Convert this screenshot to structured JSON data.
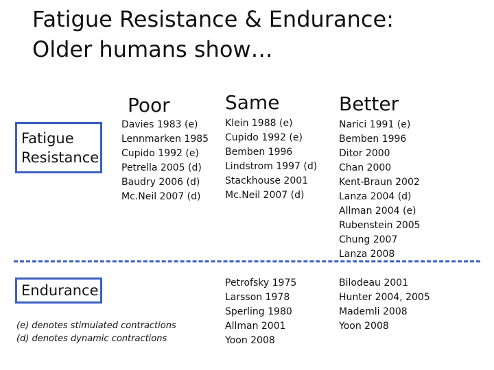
{
  "title": {
    "line1": "Fatigue Resistance & Endurance:",
    "line2": "Older humans show…"
  },
  "columns": {
    "poor": "Poor",
    "same": "Same",
    "better": "Better"
  },
  "rows": {
    "fatigue": {
      "label_line1": "Fatigue",
      "label_line2": "Resistance",
      "poor": [
        "Davies 1983 (e)",
        "Lennmarken 1985",
        "Cupido 1992 (e)",
        "Petrella 2005 (d)",
        "Baudry 2006 (d)",
        "Mc.Neil 2007 (d)"
      ],
      "same": [
        "Klein 1988 (e)",
        "Cupido 1992 (e)",
        "Bemben 1996",
        "Lindstrom 1997 (d)",
        "Stackhouse 2001",
        "Mc.Neil 2007 (d)"
      ],
      "better": [
        "Narici 1991 (e)",
        "Bemben 1996",
        "Ditor 2000",
        "Chan 2000",
        "Kent-Braun 2002",
        "Lanza 2004 (d)",
        "Allman 2004 (e)",
        "Rubenstein 2005",
        "Chung 2007",
        "Lanza 2008"
      ]
    },
    "endurance": {
      "label": "Endurance",
      "same": [
        "Petrofsky 1975",
        "Larsson 1978",
        "Sperling 1980",
        "Allman 2001",
        "Yoon 2008"
      ],
      "better": [
        "Bilodeau 2001",
        "Hunter 2004, 2005",
        "Mademli 2008",
        "Yoon 2008"
      ]
    }
  },
  "legend": {
    "line1": "(e) denotes stimulated contractions",
    "line2": "(d) denotes dynamic contractions"
  },
  "colors": {
    "accent": "#3a5fc4",
    "text": "#111111",
    "background": "#ffffff"
  }
}
